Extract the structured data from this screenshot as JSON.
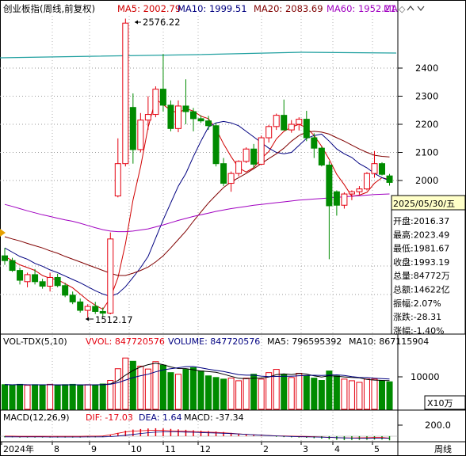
{
  "header": {
    "title": "创业板指(周线,前复权)",
    "ma5": "MA5: 2002.79",
    "ma10": "MA10: 1999.51",
    "ma20": "MA20: 2083.69",
    "ma60": "MA60: 1952.21",
    "ma_more": "MA",
    "diamond": "◇"
  },
  "price_axis": {
    "ticks": [
      "2400",
      "2300",
      "2200",
      "2100",
      "2000"
    ]
  },
  "annotations": {
    "high": "2576.22",
    "low": "1512.17"
  },
  "info_panel": {
    "date": "2025/05/30/五",
    "rows": [
      "开盘:2016.37",
      "最高:2023.49",
      "最低:1981.67",
      "收盘:1993.19",
      "总量:84772万",
      "总额:14622亿",
      "振幅:2.07%",
      "涨跌:-28.31",
      "涨幅:-1.40%"
    ]
  },
  "vol_header": {
    "name": "VOL-TDX(5,10)",
    "vvol": "VVOL: 847720576",
    "volume": "VOLUME: 847720576",
    "ma5": "MA5: 796595392",
    "ma10": "MA10: 867115904"
  },
  "vol_axis": {
    "tick": "10000",
    "unit": "X10万"
  },
  "macd_header": {
    "name": "MACD(12,26,9)",
    "dif": "DIF: -17.03",
    "dea": "DEA: 1.64",
    "macd": "MACD: -37.34"
  },
  "macd_axis": {
    "tick": "200.0"
  },
  "time_axis": {
    "labels": [
      "2024年",
      "8",
      "9",
      "10",
      "11",
      "12",
      "2",
      "3",
      "4",
      "5"
    ],
    "period": "周线"
  },
  "colors": {
    "up": "#e4000f",
    "down": "#008b00",
    "ma5": "#d00000",
    "ma10": "#000080",
    "ma20": "#800000",
    "ma60": "#a000c0",
    "ma_long": "#20a0a0"
  },
  "chart_data": [
    {
      "type": "candlestick",
      "title": "创业板指(周线,前复权)",
      "candles": [
        {
          "o": 1732,
          "h": 1760,
          "l": 1700,
          "c": 1715
        },
        {
          "o": 1715,
          "h": 1725,
          "l": 1675,
          "c": 1680
        },
        {
          "o": 1680,
          "h": 1690,
          "l": 1630,
          "c": 1645
        },
        {
          "o": 1640,
          "h": 1672,
          "l": 1620,
          "c": 1665
        },
        {
          "o": 1665,
          "h": 1685,
          "l": 1630,
          "c": 1640
        },
        {
          "o": 1640,
          "h": 1650,
          "l": 1615,
          "c": 1624
        },
        {
          "o": 1624,
          "h": 1672,
          "l": 1605,
          "c": 1655
        },
        {
          "o": 1655,
          "h": 1668,
          "l": 1620,
          "c": 1626
        },
        {
          "o": 1626,
          "h": 1636,
          "l": 1585,
          "c": 1592
        },
        {
          "o": 1592,
          "h": 1605,
          "l": 1560,
          "c": 1568
        },
        {
          "o": 1568,
          "h": 1580,
          "l": 1530,
          "c": 1538
        },
        {
          "o": 1538,
          "h": 1560,
          "l": 1512.17,
          "c": 1552
        },
        {
          "o": 1552,
          "h": 1568,
          "l": 1525,
          "c": 1534
        },
        {
          "o": 1534,
          "h": 1548,
          "l": 1515,
          "c": 1528
        },
        {
          "o": 1528,
          "h": 1815,
          "l": 1524,
          "c": 1792
        },
        {
          "o": 1945,
          "h": 2150,
          "l": 1940,
          "c": 2060
        },
        {
          "o": 2060,
          "h": 2576.22,
          "l": 2050,
          "c": 2560
        },
        {
          "o": 2260,
          "h": 2310,
          "l": 2060,
          "c": 2110
        },
        {
          "o": 2110,
          "h": 2240,
          "l": 2100,
          "c": 2215
        },
        {
          "o": 2215,
          "h": 2300,
          "l": 2180,
          "c": 2235
        },
        {
          "o": 2235,
          "h": 2335,
          "l": 2225,
          "c": 2325
        },
        {
          "o": 2325,
          "h": 2450,
          "l": 2245,
          "c": 2268
        },
        {
          "o": 2268,
          "h": 2285,
          "l": 2175,
          "c": 2185
        },
        {
          "o": 2185,
          "h": 2285,
          "l": 2172,
          "c": 2265
        },
        {
          "o": 2265,
          "h": 2360,
          "l": 2200,
          "c": 2245
        },
        {
          "o": 2245,
          "h": 2258,
          "l": 2175,
          "c": 2220
        },
        {
          "o": 2220,
          "h": 2232,
          "l": 2205,
          "c": 2212
        },
        {
          "o": 2212,
          "h": 2230,
          "l": 2180,
          "c": 2195
        },
        {
          "o": 2195,
          "h": 2205,
          "l": 2050,
          "c": 2060
        },
        {
          "o": 2060,
          "h": 2080,
          "l": 1980,
          "c": 1990
        },
        {
          "o": 1990,
          "h": 2032,
          "l": 1960,
          "c": 2025
        },
        {
          "o": 2025,
          "h": 2072,
          "l": 2015,
          "c": 2068
        },
        {
          "o": 2068,
          "h": 2118,
          "l": 2062,
          "c": 2112
        },
        {
          "o": 2112,
          "h": 2130,
          "l": 2045,
          "c": 2058
        },
        {
          "o": 2058,
          "h": 2160,
          "l": 2055,
          "c": 2152
        },
        {
          "o": 2152,
          "h": 2198,
          "l": 2135,
          "c": 2192
        },
        {
          "o": 2192,
          "h": 2238,
          "l": 2180,
          "c": 2232
        },
        {
          "o": 2232,
          "h": 2288,
          "l": 2178,
          "c": 2180
        },
        {
          "o": 2180,
          "h": 2215,
          "l": 2170,
          "c": 2200
        },
        {
          "o": 2200,
          "h": 2225,
          "l": 2178,
          "c": 2218
        },
        {
          "o": 2218,
          "h": 2248,
          "l": 2140,
          "c": 2152
        },
        {
          "o": 2152,
          "h": 2168,
          "l": 2080,
          "c": 2115
        },
        {
          "o": 2115,
          "h": 2120,
          "l": 2050,
          "c": 2055
        },
        {
          "o": 2055,
          "h": 2068,
          "l": 1720,
          "c": 1910
        },
        {
          "o": 1960,
          "h": 1965,
          "l": 1875,
          "c": 1912
        },
        {
          "o": 1912,
          "h": 1958,
          "l": 1900,
          "c": 1952
        },
        {
          "o": 1952,
          "h": 1965,
          "l": 1930,
          "c": 1960
        },
        {
          "o": 1960,
          "h": 1980,
          "l": 1950,
          "c": 1970
        },
        {
          "o": 1970,
          "h": 2030,
          "l": 1965,
          "c": 2025
        },
        {
          "o": 2025,
          "h": 2105,
          "l": 2010,
          "c": 2060
        },
        {
          "o": 2060,
          "h": 2065,
          "l": 2018,
          "c": 2022
        },
        {
          "o": 2016.37,
          "h": 2023.49,
          "l": 1981.67,
          "c": 1993.19
        }
      ],
      "ma_lines": [
        {
          "name": "MA5",
          "values": [
            1730,
            1715,
            1700,
            1690,
            1680,
            1662,
            1652,
            1647,
            1633,
            1618,
            1596,
            1574,
            1556,
            1542,
            1582,
            1654,
            1775,
            1930,
            2049,
            2189,
            2290,
            2270,
            2250,
            2240,
            2256,
            2247,
            2229,
            2220,
            2183,
            2130,
            2085,
            2045,
            2030,
            2046,
            2078,
            2103,
            2148,
            2175,
            2190,
            2200,
            2188,
            2160,
            2122,
            2075,
            2022,
            1985,
            1944,
            1948,
            1958,
            1990,
            2010,
            2002.79
          ]
        },
        {
          "name": "MA10",
          "values": [
            1760,
            1745,
            1730,
            1720,
            1705,
            1695,
            1682,
            1672,
            1660,
            1648,
            1636,
            1622,
            1608,
            1596,
            1588,
            1598,
            1622,
            1655,
            1690,
            1730,
            1795,
            1860,
            1920,
            1980,
            2025,
            2085,
            2140,
            2190,
            2205,
            2210,
            2205,
            2195,
            2175,
            2155,
            2135,
            2115,
            2100,
            2095,
            2100,
            2125,
            2150,
            2160,
            2165,
            2140,
            2112,
            2095,
            2082,
            2060,
            2045,
            2025,
            2010,
            1999.51
          ]
        },
        {
          "name": "MA20",
          "values": [
            1800,
            1792,
            1785,
            1776,
            1768,
            1760,
            1750,
            1741,
            1730,
            1720,
            1710,
            1700,
            1690,
            1680,
            1670,
            1662,
            1662,
            1670,
            1680,
            1692,
            1710,
            1732,
            1760,
            1790,
            1820,
            1855,
            1888,
            1920,
            1948,
            1975,
            1995,
            2010,
            2025,
            2042,
            2060,
            2078,
            2095,
            2115,
            2140,
            2160,
            2172,
            2175,
            2172,
            2165,
            2152,
            2140,
            2126,
            2112,
            2100,
            2090,
            2086,
            2083.69
          ]
        },
        {
          "name": "MA60",
          "values": [
            1915,
            1908,
            1900,
            1892,
            1885,
            1878,
            1872,
            1866,
            1860,
            1855,
            1848,
            1840,
            1832,
            1825,
            1820,
            1818,
            1818,
            1820,
            1824,
            1828,
            1835,
            1842,
            1850,
            1858,
            1865,
            1872,
            1878,
            1884,
            1890,
            1895,
            1900,
            1904,
            1908,
            1912,
            1915,
            1918,
            1921,
            1924,
            1927,
            1930,
            1932,
            1934,
            1936,
            1938,
            1940,
            1942,
            1944,
            1946,
            1948,
            1950,
            1951,
            1952.21
          ]
        }
      ]
    },
    {
      "type": "bar",
      "title": "VOL-TDX(5,10)",
      "unit": "X10万",
      "values": [
        7600,
        7500,
        7700,
        7400,
        7600,
        7500,
        7700,
        7300,
        7600,
        7700,
        7400,
        7600,
        7500,
        7800,
        8900,
        12500,
        15800,
        14800,
        13300,
        12400,
        14700,
        13600,
        11300,
        10800,
        12300,
        12800,
        11800,
        10300,
        9800,
        9300,
        9600,
        8800,
        9600,
        10800,
        9300,
        11300,
        12300,
        10800,
        9800,
        11100,
        10300,
        9600,
        8900,
        11800,
        10300,
        9300,
        8800,
        8300,
        9300,
        9300,
        8800,
        8477
      ]
    },
    {
      "type": "bar",
      "title": "MACD(12,26,9)",
      "values": [
        -10,
        -10,
        -12,
        -12,
        -12,
        -12,
        -12,
        -12,
        -12,
        -12,
        -12,
        -10,
        -10,
        -8,
        10,
        30,
        50,
        60,
        65,
        70,
        72,
        70,
        66,
        62,
        58,
        54,
        50,
        46,
        42,
        38,
        30,
        22,
        15,
        10,
        5,
        0,
        -5,
        -8,
        -10,
        -12,
        -14,
        -18,
        -22,
        -28,
        -32,
        -35,
        -34,
        -33,
        -32,
        -30,
        -30,
        -37.34
      ],
      "lines": [
        {
          "name": "DIF",
          "value": -17.03
        },
        {
          "name": "DEA",
          "value": 1.64
        }
      ]
    }
  ]
}
